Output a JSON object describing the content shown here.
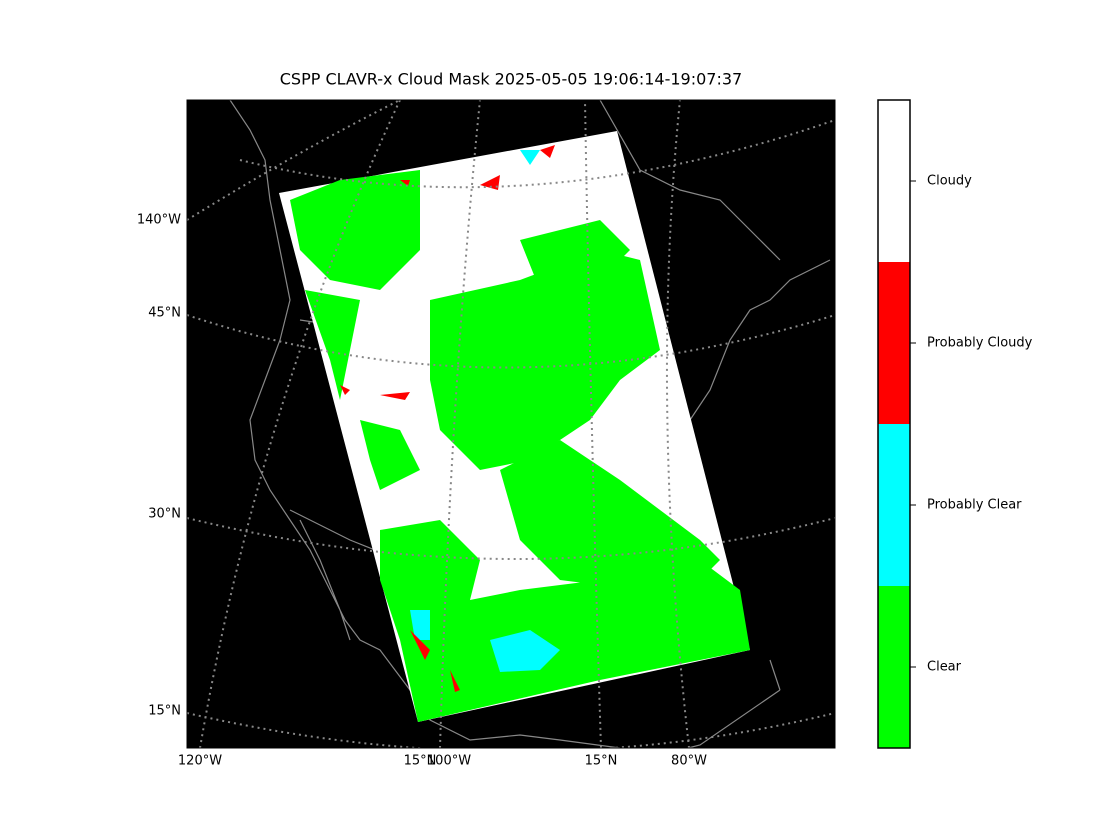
{
  "title": "CSPP CLAVR-x Cloud Mask 2025-05-05 19:06:14-19:07:37",
  "map": {
    "left_labels": [
      "140°W",
      "45°N",
      "30°N",
      "15°N"
    ],
    "bottom_labels": [
      "120°W",
      "15°N",
      "100°W",
      "15°N",
      "80°W"
    ]
  },
  "colorbar": {
    "classes": [
      {
        "label": "Clear",
        "color": "#00ff00"
      },
      {
        "label": "Probably Clear",
        "color": "#00ffff"
      },
      {
        "label": "Probably Cloudy",
        "color": "#ff0000"
      },
      {
        "label": "Cloudy",
        "color": "#ffffff"
      }
    ]
  }
}
